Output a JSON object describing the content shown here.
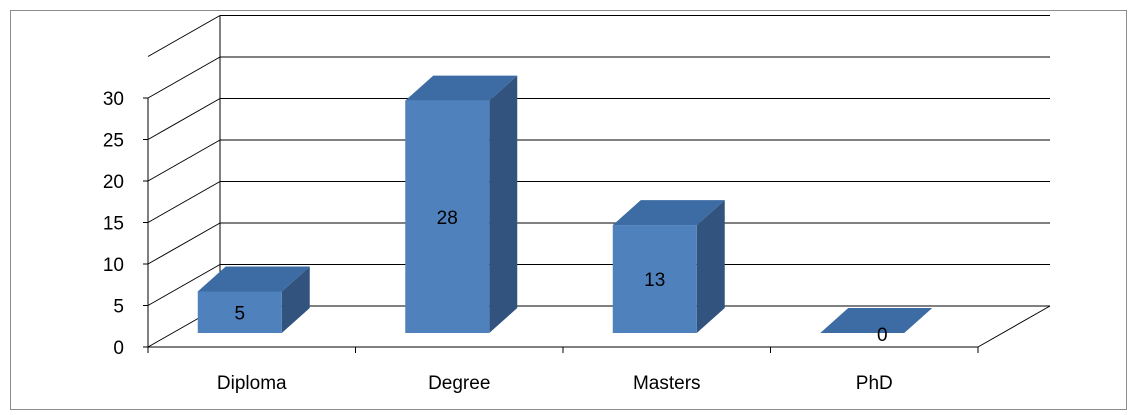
{
  "chart_data": {
    "type": "bar",
    "style": "3d-column",
    "categories": [
      "Diploma",
      "Degree",
      "Masters",
      "PhD"
    ],
    "values": [
      5,
      28,
      13,
      0
    ],
    "data_labels": [
      "5",
      "28",
      "13",
      "0"
    ],
    "yticks": [
      "0",
      "5",
      "10",
      "15",
      "20",
      "25",
      "30"
    ],
    "ylim": [
      0,
      30
    ],
    "grid": true,
    "legend": "none",
    "colors": {
      "bar_front": "#4F81BD",
      "bar_top": "#3D6CA4",
      "bar_side": "#32537E",
      "gridline": "#000000",
      "frame": "#8C8C8C"
    }
  }
}
